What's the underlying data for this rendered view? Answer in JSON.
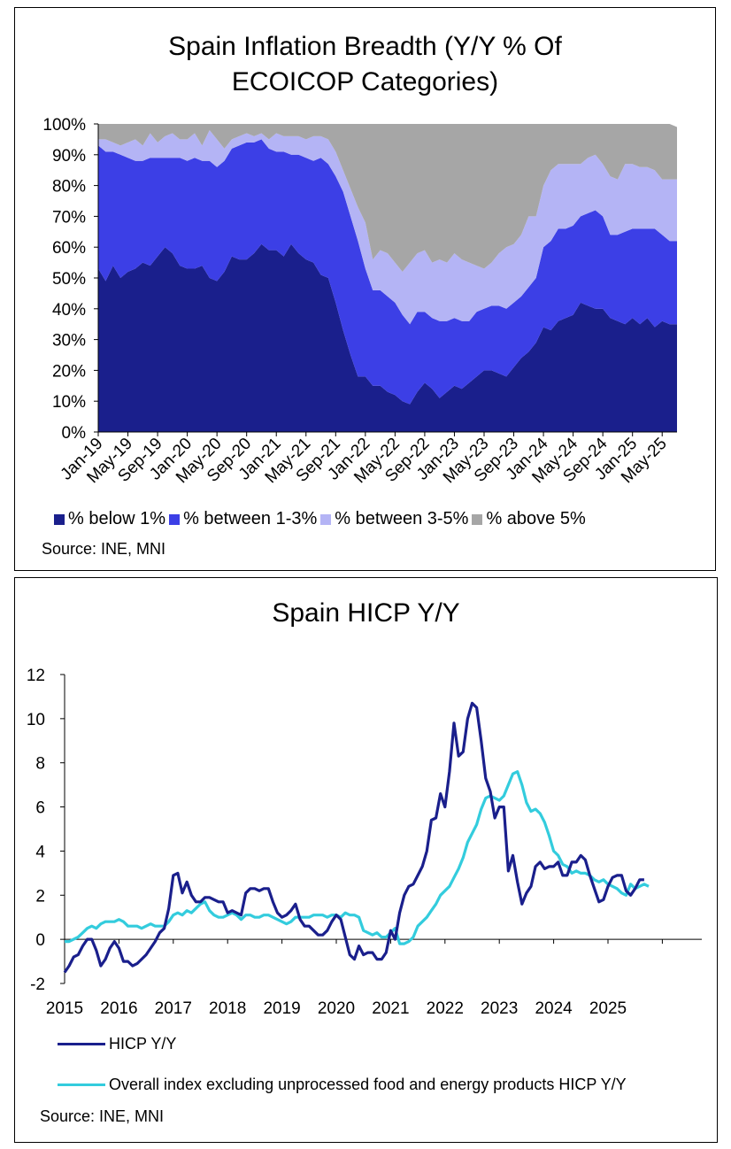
{
  "chart_data": [
    {
      "type": "area",
      "title": "Spain Inflation Breadth (Y/Y % Of ECOICOP Categories)",
      "title_lines": [
        "Spain Inflation Breadth (Y/Y % Of",
        "ECOICOP Categories)"
      ],
      "stacked": true,
      "ylim": [
        0,
        100
      ],
      "y_ticks": [
        "0%",
        "10%",
        "20%",
        "30%",
        "40%",
        "50%",
        "60%",
        "70%",
        "80%",
        "90%",
        "100%"
      ],
      "x_tick_labels": [
        "Jan-19",
        "May-19",
        "Sep-19",
        "Jan-20",
        "May-20",
        "Sep-20",
        "Jan-21",
        "May-21",
        "Sep-21",
        "Jan-22",
        "May-22",
        "Sep-22",
        "Jan-23",
        "May-23",
        "Sep-23",
        "Jan-24",
        "May-24",
        "Sep-24",
        "Jan-25",
        "May-25"
      ],
      "x_start": "Jan-19",
      "legend_position": "bottom",
      "series": [
        {
          "name": "% below 1%",
          "color": "#1a1f8c",
          "values": [
            53,
            49,
            54,
            50,
            52,
            53,
            55,
            54,
            57,
            60,
            58,
            54,
            53,
            53,
            54,
            50,
            49,
            52,
            57,
            56,
            56,
            58,
            61,
            59,
            59,
            57,
            61,
            58,
            56,
            55,
            51,
            50,
            42,
            33,
            25,
            18,
            18,
            15,
            15,
            13,
            12,
            10,
            9,
            13,
            16,
            14,
            11,
            13,
            15,
            14,
            16,
            18,
            20,
            20,
            19,
            18,
            21,
            24,
            26,
            29,
            34,
            33,
            36,
            37,
            38,
            42,
            41,
            40,
            40,
            37,
            36,
            35,
            37,
            35,
            37,
            34,
            36,
            35,
            35
          ]
        },
        {
          "name": "% between 1-3%",
          "color": "#3c3fe6",
          "values": [
            40,
            42,
            37,
            40,
            37,
            35,
            33,
            35,
            32,
            29,
            31,
            35,
            35,
            36,
            34,
            38,
            37,
            36,
            35,
            37,
            38,
            36,
            34,
            33,
            32,
            34,
            29,
            32,
            33,
            33,
            38,
            37,
            41,
            45,
            45,
            44,
            35,
            31,
            31,
            31,
            30,
            28,
            26,
            26,
            23,
            23,
            25,
            23,
            22,
            22,
            20,
            21,
            20,
            21,
            22,
            22,
            21,
            20,
            21,
            21,
            26,
            29,
            30,
            29,
            29,
            28,
            30,
            32,
            30,
            27,
            28,
            30,
            29,
            31,
            29,
            32,
            28,
            27,
            27
          ]
        },
        {
          "name": "% between 3-5%",
          "color": "#b4b4f5",
          "values": [
            2,
            4,
            3,
            3,
            5,
            7,
            5,
            8,
            5,
            7,
            8,
            6,
            7,
            8,
            5,
            10,
            9,
            4,
            3,
            3,
            3,
            2,
            2,
            3,
            6,
            5,
            6,
            6,
            6,
            8,
            7,
            8,
            8,
            7,
            9,
            11,
            15,
            10,
            13,
            14,
            13,
            14,
            20,
            19,
            20,
            18,
            20,
            19,
            21,
            20,
            19,
            15,
            13,
            14,
            17,
            20,
            19,
            20,
            23,
            20,
            20,
            23,
            21,
            21,
            20,
            17,
            18,
            18,
            17,
            19,
            18,
            22,
            21,
            20,
            20,
            19,
            18,
            20,
            20
          ]
        },
        {
          "name": "% above 5%",
          "color": "#a6a6a6",
          "values": [
            5,
            5,
            6,
            7,
            6,
            5,
            7,
            3,
            6,
            4,
            3,
            5,
            5,
            3,
            7,
            2,
            5,
            8,
            5,
            4,
            3,
            4,
            3,
            5,
            3,
            4,
            4,
            4,
            5,
            4,
            4,
            5,
            9,
            15,
            21,
            27,
            32,
            44,
            41,
            42,
            45,
            48,
            45,
            42,
            41,
            45,
            44,
            45,
            42,
            44,
            45,
            46,
            47,
            45,
            42,
            40,
            39,
            36,
            30,
            30,
            20,
            15,
            13,
            13,
            13,
            13,
            11,
            10,
            13,
            17,
            18,
            13,
            13,
            14,
            14,
            15,
            18,
            18,
            17
          ]
        }
      ],
      "source": "Source: INE, MNI"
    },
    {
      "type": "line",
      "title": "Spain HICP Y/Y",
      "ylim": [
        -2,
        12
      ],
      "y_ticks": [
        "-2",
        "0",
        "2",
        "4",
        "6",
        "8",
        "10",
        "12"
      ],
      "x_tick_labels": [
        "2015",
        "2016",
        "2017",
        "2018",
        "2019",
        "2020",
        "2021",
        "2022",
        "2023",
        "2024",
        "2025"
      ],
      "legend_position": "bottom",
      "series": [
        {
          "name": "HICP Y/Y",
          "color": "#1a1f8c",
          "values": [
            -1.5,
            -1.2,
            -0.8,
            -0.7,
            -0.3,
            0,
            0,
            -0.5,
            -1.2,
            -0.9,
            -0.4,
            -0.1,
            -0.4,
            -1,
            -1,
            -1.2,
            -1.1,
            -0.9,
            -0.7,
            -0.4,
            -0.1,
            0.3,
            0.5,
            1.4,
            2.9,
            3,
            2.1,
            2.6,
            2,
            1.7,
            1.7,
            1.9,
            1.9,
            1.8,
            1.7,
            1.7,
            1.2,
            1.3,
            1.2,
            1.1,
            2.1,
            2.3,
            2.3,
            2.2,
            2.3,
            2.3,
            1.7,
            1.2,
            1,
            1.1,
            1.3,
            1.6,
            0.9,
            0.6,
            0.6,
            0.4,
            0.2,
            0.2,
            0.4,
            0.8,
            1.1,
            0.9,
            0.1,
            -0.7,
            -0.9,
            -0.3,
            -0.7,
            -0.6,
            -0.6,
            -0.9,
            -0.9,
            -0.6,
            0.4,
            0,
            1.2,
            2,
            2.4,
            2.5,
            2.9,
            3.3,
            4,
            5.4,
            5.5,
            6.6,
            6,
            7.6,
            9.8,
            8.3,
            8.5,
            10,
            10.7,
            10.5,
            9,
            7.3,
            6.7,
            5.5,
            6,
            6,
            3.1,
            3.8,
            2.6,
            1.6,
            2.1,
            2.4,
            3.3,
            3.5,
            3.2,
            3.3,
            3.3,
            3.5,
            2.9,
            2.9,
            3.5,
            3.5,
            3.8,
            3.6,
            2.9,
            2.3,
            1.7,
            1.8,
            2.4,
            2.8,
            2.9,
            2.9,
            2.2,
            2,
            2.3,
            2.7,
            2.7
          ]
        },
        {
          "name": "Overall index excluding unprocessed food and energy products HICP Y/Y",
          "color": "#33ccdd",
          "values": [
            -0.1,
            -0.1,
            0,
            0.1,
            0.3,
            0.5,
            0.6,
            0.5,
            0.7,
            0.8,
            0.8,
            0.8,
            0.9,
            0.8,
            0.6,
            0.6,
            0.6,
            0.5,
            0.6,
            0.7,
            0.6,
            0.6,
            0.6,
            0.8,
            1.1,
            1.2,
            1.1,
            1.3,
            1.2,
            1.4,
            1.6,
            1.7,
            1.3,
            1.1,
            1,
            1,
            1.1,
            1.2,
            1.1,
            0.9,
            1.1,
            1.1,
            1,
            1,
            1.1,
            1.1,
            1,
            0.9,
            0.8,
            0.7,
            0.8,
            1,
            1,
            1,
            1,
            1.1,
            1.1,
            1.1,
            1,
            1.1,
            1.1,
            1,
            1.2,
            1.1,
            1.1,
            1,
            0.4,
            0.3,
            0.2,
            0.3,
            0.1,
            0.1,
            0.3,
            0.5,
            -0.2,
            -0.2,
            -0.1,
            0.1,
            0.6,
            0.8,
            1,
            1.3,
            1.6,
            2,
            2.2,
            2.4,
            2.8,
            3.2,
            3.7,
            4.4,
            4.8,
            5.2,
            5.9,
            6.4,
            6.5,
            6.4,
            6.3,
            6.5,
            7,
            7.5,
            7.6,
            7,
            6.2,
            5.8,
            5.9,
            5.7,
            5.3,
            4.7,
            4,
            3.8,
            3.4,
            3.3,
            3,
            3.1,
            3,
            3,
            2.9,
            2.7,
            2.6,
            2.7,
            2.5,
            2.4,
            2.3,
            2.1,
            2,
            2.5,
            2.3,
            2.4,
            2.5,
            2.4
          ]
        }
      ],
      "source": "Source: INE, MNI"
    }
  ]
}
